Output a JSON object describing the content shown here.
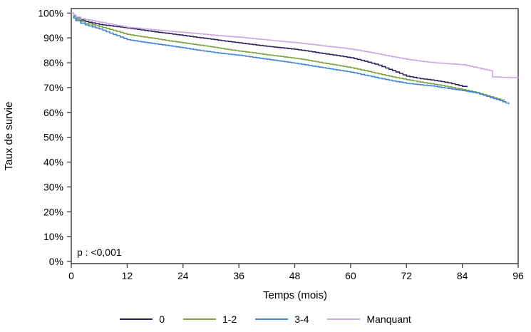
{
  "figure": {
    "background": "#ffffff",
    "frame_color": "#404040",
    "text_color": "#000000"
  },
  "chart_data": {
    "type": "line",
    "subtype": "kaplan-meier-survival-curves",
    "title": "",
    "xlabel": "Temps (mois)",
    "ylabel": "Taux de survie",
    "xlim": [
      0,
      96
    ],
    "ylim": [
      0,
      100
    ],
    "x_ticks": [
      0,
      12,
      24,
      36,
      48,
      60,
      72,
      84,
      96
    ],
    "y_tick_values": [
      0,
      10,
      20,
      30,
      40,
      50,
      60,
      70,
      80,
      90,
      100
    ],
    "y_tick_labels": [
      "0%",
      "10%",
      "20%",
      "30%",
      "40%",
      "50%",
      "60%",
      "70%",
      "80%",
      "90%",
      "100%"
    ],
    "grid": false,
    "legend_position": "bottom",
    "annotation": "p : <0,001",
    "series": [
      {
        "name": "0",
        "color": "#26265e",
        "points": [
          [
            0,
            100
          ],
          [
            0.5,
            99
          ],
          [
            1,
            98.1
          ],
          [
            2,
            97.2
          ],
          [
            3,
            96.6
          ],
          [
            6,
            95.4
          ],
          [
            9,
            94.7
          ],
          [
            12,
            94
          ],
          [
            15,
            93.2
          ],
          [
            18,
            92.4
          ],
          [
            21,
            91.7
          ],
          [
            24,
            91
          ],
          [
            27,
            90.2
          ],
          [
            30,
            89.5
          ],
          [
            33,
            88.7
          ],
          [
            36,
            88
          ],
          [
            39,
            87.3
          ],
          [
            42,
            86.6
          ],
          [
            45,
            86
          ],
          [
            48,
            85.4
          ],
          [
            51,
            84.6
          ],
          [
            54,
            83.7
          ],
          [
            57,
            82.9
          ],
          [
            60,
            82
          ],
          [
            63,
            80.6
          ],
          [
            66,
            79
          ],
          [
            69,
            76.8
          ],
          [
            72,
            74.6
          ],
          [
            75,
            73.6
          ],
          [
            78,
            72.9
          ],
          [
            81,
            71.9
          ],
          [
            84,
            70.5
          ],
          [
            85,
            70.2
          ]
        ]
      },
      {
        "name": "1-2",
        "color": "#7da23d",
        "points": [
          [
            0,
            100
          ],
          [
            0.5,
            98.5
          ],
          [
            1,
            97.4
          ],
          [
            2,
            96.5
          ],
          [
            3,
            95.9
          ],
          [
            6,
            94.6
          ],
          [
            9,
            93
          ],
          [
            12,
            91.4
          ],
          [
            15,
            90.5
          ],
          [
            18,
            89.7
          ],
          [
            21,
            88.8
          ],
          [
            24,
            88
          ],
          [
            27,
            87.2
          ],
          [
            30,
            86.4
          ],
          [
            33,
            85.5
          ],
          [
            36,
            84.7
          ],
          [
            39,
            84
          ],
          [
            42,
            83.2
          ],
          [
            45,
            82.5
          ],
          [
            48,
            81.8
          ],
          [
            51,
            80.9
          ],
          [
            54,
            79.9
          ],
          [
            57,
            79
          ],
          [
            60,
            78
          ],
          [
            63,
            76.8
          ],
          [
            66,
            75.5
          ],
          [
            69,
            74.3
          ],
          [
            72,
            73.2
          ],
          [
            75,
            72.2
          ],
          [
            78,
            71.3
          ],
          [
            81,
            70.3
          ],
          [
            84,
            69.2
          ],
          [
            87,
            68
          ],
          [
            90,
            66.3
          ],
          [
            93,
            64.6
          ]
        ]
      },
      {
        "name": "3-4",
        "color": "#3e85d9",
        "points": [
          [
            0,
            100
          ],
          [
            0.5,
            98
          ],
          [
            1,
            96.9
          ],
          [
            2,
            95.9
          ],
          [
            3,
            95.2
          ],
          [
            6,
            93.6
          ],
          [
            9,
            91.4
          ],
          [
            12,
            89.3
          ],
          [
            15,
            88.4
          ],
          [
            18,
            87.6
          ],
          [
            21,
            86.8
          ],
          [
            24,
            86
          ],
          [
            27,
            85.1
          ],
          [
            30,
            84.3
          ],
          [
            33,
            83.6
          ],
          [
            36,
            83
          ],
          [
            39,
            82.2
          ],
          [
            42,
            81.4
          ],
          [
            45,
            80.6
          ],
          [
            48,
            79.8
          ],
          [
            51,
            78.9
          ],
          [
            54,
            78
          ],
          [
            57,
            77.1
          ],
          [
            60,
            76.2
          ],
          [
            63,
            75
          ],
          [
            66,
            73.8
          ],
          [
            69,
            72.7
          ],
          [
            72,
            71.7
          ],
          [
            75,
            71.1
          ],
          [
            78,
            70.5
          ],
          [
            81,
            69.6
          ],
          [
            84,
            68.8
          ],
          [
            87,
            67.8
          ],
          [
            90,
            66
          ],
          [
            92,
            64.8
          ],
          [
            94,
            63.3
          ]
        ]
      },
      {
        "name": "Manquant",
        "color": "#cda6e4",
        "points": [
          [
            0,
            100
          ],
          [
            0.5,
            99.2
          ],
          [
            1,
            98.4
          ],
          [
            2,
            97.8
          ],
          [
            3,
            97.4
          ],
          [
            6,
            96.4
          ],
          [
            9,
            95.3
          ],
          [
            12,
            94.3
          ],
          [
            15,
            93.7
          ],
          [
            18,
            93.2
          ],
          [
            21,
            92.7
          ],
          [
            24,
            92.2
          ],
          [
            27,
            91.7
          ],
          [
            30,
            91.2
          ],
          [
            33,
            90.7
          ],
          [
            36,
            90.3
          ],
          [
            39,
            89.7
          ],
          [
            42,
            89.2
          ],
          [
            45,
            88.6
          ],
          [
            48,
            88.1
          ],
          [
            51,
            87.5
          ],
          [
            54,
            86.8
          ],
          [
            57,
            86.2
          ],
          [
            60,
            85.5
          ],
          [
            63,
            84.5
          ],
          [
            66,
            83.5
          ],
          [
            69,
            82.4
          ],
          [
            72,
            81.4
          ],
          [
            75,
            80.6
          ],
          [
            78,
            80
          ],
          [
            81,
            79.6
          ],
          [
            84,
            79.2
          ],
          [
            88,
            77.6
          ],
          [
            90,
            76.8
          ],
          [
            90.5,
            74.3
          ],
          [
            96,
            73.9
          ]
        ]
      }
    ]
  }
}
